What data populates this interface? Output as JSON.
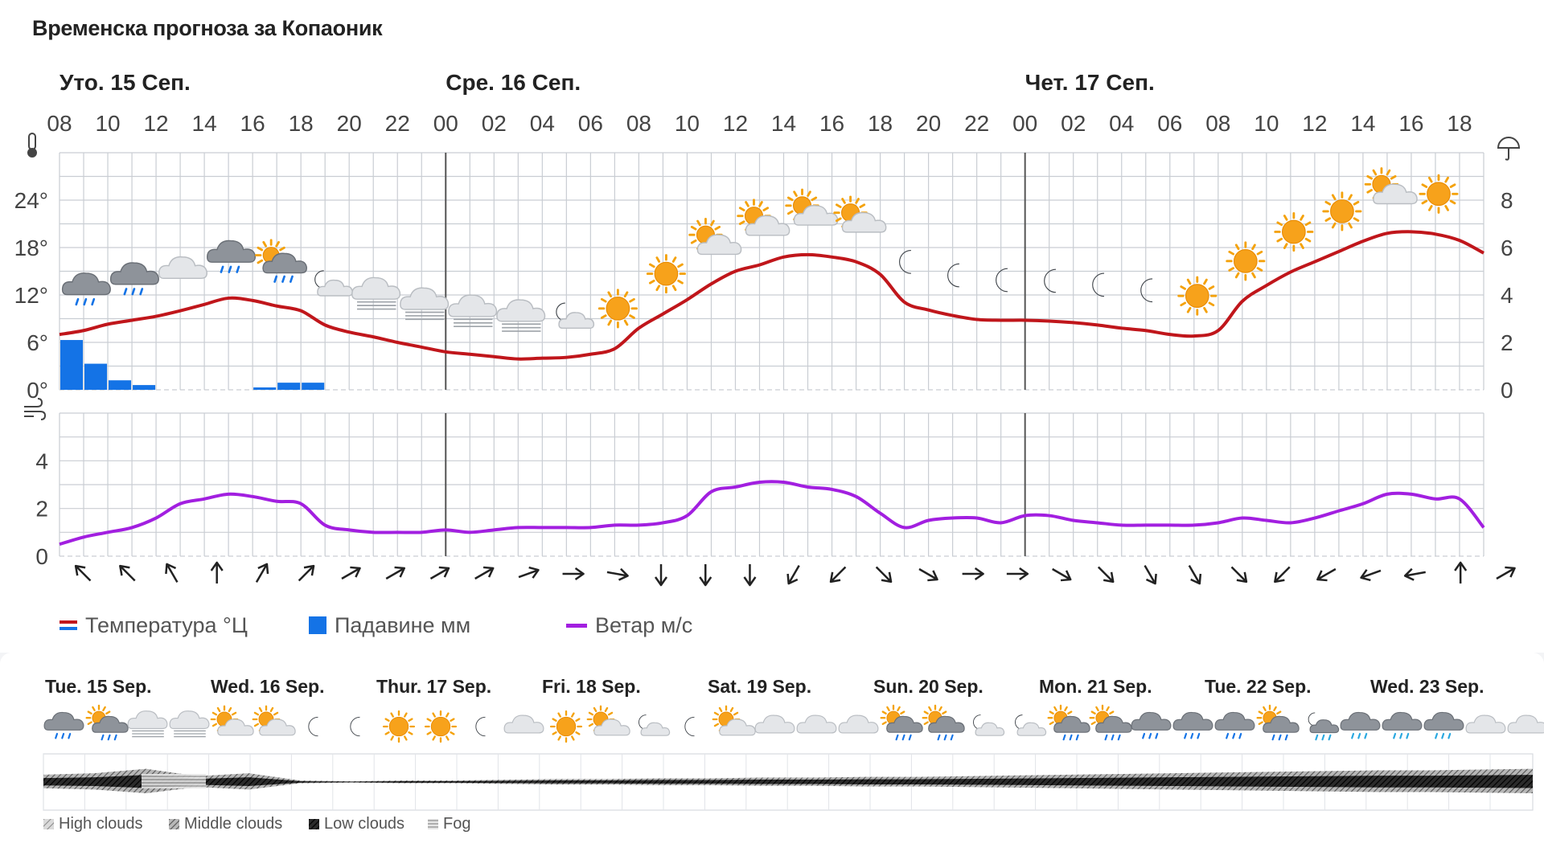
{
  "title": "Временска прогноза за Копаоник",
  "colors": {
    "temperature": "#c0161b",
    "precipitation": "#1473e6",
    "wind": "#a21fe0",
    "grid": "#c9cdd3",
    "day_separator": "#555555"
  },
  "legend": {
    "temperature": "Температура °Ц",
    "precipitation": "Падавине мм",
    "wind": "Ветар м/с"
  },
  "chart_data": [
    {
      "type": "line",
      "title": "",
      "day_labels": [
        {
          "label": "Уто. 15 Сеп.",
          "hour_index": 0
        },
        {
          "label": "Сре. 16 Сеп.",
          "hour_index": 16
        },
        {
          "label": "Чет. 17 Сеп.",
          "hour_index": 40
        }
      ],
      "x": [
        "08",
        "09",
        "10",
        "11",
        "12",
        "13",
        "14",
        "15",
        "16",
        "17",
        "18",
        "19",
        "20",
        "21",
        "22",
        "23",
        "00",
        "01",
        "02",
        "03",
        "04",
        "05",
        "06",
        "07",
        "08",
        "09",
        "10",
        "11",
        "12",
        "13",
        "14",
        "15",
        "16",
        "17",
        "18",
        "19",
        "20",
        "21",
        "22",
        "23",
        "00",
        "01",
        "02",
        "03",
        "04",
        "05",
        "06",
        "07",
        "08",
        "09",
        "10",
        "11",
        "12",
        "13",
        "14",
        "15",
        "16",
        "17",
        "18",
        "19"
      ],
      "x_tick_labels": [
        "08",
        "10",
        "12",
        "14",
        "16",
        "18",
        "20",
        "22",
        "00",
        "02",
        "04",
        "06",
        "08",
        "10",
        "12",
        "14",
        "16",
        "18",
        "20",
        "22",
        "00",
        "02",
        "04",
        "06",
        "08",
        "10",
        "12",
        "14",
        "16",
        "18"
      ],
      "ylim_left": [
        0,
        30
      ],
      "y_ticks_left": [
        "0°",
        "6°",
        "12°",
        "18°",
        "24°"
      ],
      "ylim_right": [
        0,
        10
      ],
      "y_ticks_right": [
        "0",
        "2",
        "4",
        "6",
        "8"
      ],
      "series": [
        {
          "name": "Температура °Ц",
          "axis": "left",
          "values": [
            7,
            7.5,
            8.3,
            8.8,
            9.3,
            10,
            10.8,
            11.6,
            11.3,
            10.6,
            10,
            8.2,
            7.3,
            6.7,
            6,
            5.4,
            4.8,
            4.5,
            4.2,
            3.9,
            4,
            4.1,
            4.5,
            5.2,
            7.8,
            9.6,
            11.4,
            13.4,
            15,
            15.8,
            16.8,
            17.1,
            16.8,
            16.2,
            14.6,
            11.1,
            10.1,
            9.4,
            8.9,
            8.8,
            8.8,
            8.7,
            8.5,
            8.2,
            7.8,
            7.5,
            7,
            6.8,
            7.5,
            11.2,
            13.2,
            14.9,
            16.2,
            17.5,
            18.8,
            19.8,
            20,
            19.7,
            18.9,
            17.3
          ]
        },
        {
          "name": "Падавине мм",
          "axis": "right",
          "kind": "bar",
          "values": [
            2.1,
            1.1,
            0.4,
            0.2,
            0,
            0,
            0,
            0,
            0.1,
            0.3,
            0.3,
            0,
            0,
            0,
            0,
            0,
            0,
            0,
            0,
            0,
            0,
            0,
            0,
            0,
            0,
            0,
            0,
            0,
            0,
            0,
            0,
            0,
            0,
            0,
            0,
            0,
            0,
            0,
            0,
            0,
            0,
            0,
            0,
            0,
            0,
            0,
            0,
            0,
            0,
            0,
            0,
            0,
            0,
            0,
            0,
            0,
            0,
            0,
            0,
            0
          ]
        }
      ],
      "weather_icons": [
        {
          "h": 1,
          "icon": "cloud-rain-icon"
        },
        {
          "h": 3,
          "icon": "cloud-rain-icon"
        },
        {
          "h": 5,
          "icon": "cloud-icon"
        },
        {
          "h": 7,
          "icon": "cloud-rain-icon"
        },
        {
          "h": 9,
          "icon": "sun-cloud-rain-icon"
        },
        {
          "h": 11,
          "icon": "moon-cloud-icon"
        },
        {
          "h": 13,
          "icon": "cloud-fog-icon"
        },
        {
          "h": 15,
          "icon": "cloud-fog-icon"
        },
        {
          "h": 17,
          "icon": "cloud-fog-icon"
        },
        {
          "h": 19,
          "icon": "cloud-fog-icon"
        },
        {
          "h": 21,
          "icon": "moon-cloud-icon"
        },
        {
          "h": 23,
          "icon": "sun-icon"
        },
        {
          "h": 25,
          "icon": "sun-icon"
        },
        {
          "h": 27,
          "icon": "sun-cloud-icon"
        },
        {
          "h": 29,
          "icon": "sun-cloud-icon"
        },
        {
          "h": 31,
          "icon": "sun-cloud-icon"
        },
        {
          "h": 33,
          "icon": "sun-cloud-icon"
        },
        {
          "h": 35,
          "icon": "moon-icon"
        },
        {
          "h": 37,
          "icon": "moon-icon"
        },
        {
          "h": 39,
          "icon": "moon-icon"
        },
        {
          "h": 41,
          "icon": "moon-icon"
        },
        {
          "h": 43,
          "icon": "moon-icon"
        },
        {
          "h": 45,
          "icon": "moon-icon"
        },
        {
          "h": 47,
          "icon": "sun-icon"
        },
        {
          "h": 49,
          "icon": "sun-icon"
        },
        {
          "h": 51,
          "icon": "sun-icon"
        },
        {
          "h": 53,
          "icon": "sun-icon"
        },
        {
          "h": 55,
          "icon": "sun-cloud-icon"
        },
        {
          "h": 57,
          "icon": "sun-icon"
        }
      ],
      "icon_temps": [
        12,
        14,
        15,
        16,
        16.5,
        13,
        10,
        8.5,
        7.5,
        7,
        6.8,
        8,
        12,
        15.5,
        18.5,
        20,
        21,
        21.5,
        21,
        17,
        14.5,
        13,
        12.5,
        12,
        12,
        14,
        18.5,
        22,
        23.5,
        24,
        24,
        24
      ]
    },
    {
      "type": "line",
      "title": "",
      "ylim": [
        0,
        6
      ],
      "y_ticks": [
        "0",
        "2",
        "4"
      ],
      "series": [
        {
          "name": "Ветар м/с",
          "values": [
            0.5,
            0.8,
            1,
            1.2,
            1.6,
            2.2,
            2.4,
            2.6,
            2.5,
            2.3,
            2.2,
            1.3,
            1.1,
            1,
            1,
            1,
            1.1,
            1,
            1.1,
            1.2,
            1.2,
            1.2,
            1.2,
            1.3,
            1.3,
            1.4,
            1.7,
            2.7,
            2.9,
            3.1,
            3.1,
            2.9,
            2.8,
            2.5,
            1.8,
            1.2,
            1.5,
            1.6,
            1.6,
            1.4,
            1.7,
            1.7,
            1.5,
            1.4,
            1.3,
            1.3,
            1.3,
            1.3,
            1.4,
            1.6,
            1.5,
            1.4,
            1.6,
            1.9,
            2.2,
            2.6,
            2.6,
            2.4,
            2.4,
            1.2
          ]
        }
      ],
      "wind_directions_deg": [
        135,
        135,
        150,
        180,
        210,
        225,
        240,
        240,
        240,
        240,
        250,
        270,
        280,
        0,
        0,
        0,
        30,
        45,
        315,
        300,
        270,
        270,
        300,
        315,
        330,
        330,
        315,
        45,
        60,
        70,
        80,
        180,
        240
      ]
    }
  ],
  "weekly": {
    "days": [
      "Tue. 15 Sep.",
      "Wed. 16 Sep.",
      "Thur. 17 Sep.",
      "Fri. 18 Sep.",
      "Sat. 19 Sep.",
      "Sun. 20 Sep.",
      "Mon. 21 Sep.",
      "Tue. 22 Sep.",
      "Wed. 23 Sep."
    ],
    "icons": [
      "cloud-rain-icon",
      "sun-cloud-rain-icon",
      "cloud-fog-icon",
      "cloud-fog-icon",
      "sun-cloud-icon",
      "sun-cloud-icon",
      "moon-icon",
      "moon-icon",
      "sun-icon",
      "sun-icon",
      "moon-icon",
      "cloud-icon",
      "sun-icon",
      "sun-cloud-icon",
      "moon-cloud-icon",
      "moon-icon",
      "sun-cloud-icon",
      "cloud-icon",
      "cloud-icon",
      "cloud-icon",
      "sun-cloud-rain-icon",
      "sun-cloud-rain-icon",
      "moon-cloud-icon",
      "moon-cloud-icon",
      "sun-cloud-rain-icon",
      "sun-cloud-rain-icon",
      "cloud-rain-icon",
      "cloud-rain-icon",
      "cloud-rain-icon",
      "sun-cloud-rain-icon",
      "moon-cloud-snow-icon",
      "cloud-snow-icon",
      "cloud-snow-icon",
      "cloud-snow-icon",
      "cloud-icon",
      "cloud-icon"
    ],
    "cloud_cover": [
      0.5,
      0.6,
      0.9,
      0.4,
      0.6,
      0.1,
      0.05,
      0.1,
      0.1,
      0.15,
      0.2,
      0.2,
      0.25,
      0.25,
      0.3,
      0.3,
      0.35,
      0.35,
      0.4,
      0.45,
      0.5,
      0.55,
      0.6,
      0.65,
      0.7,
      0.75,
      0.8,
      0.8,
      0.85,
      0.9
    ],
    "legend": {
      "high": "High clouds",
      "middle": "Middle clouds",
      "low": "Low clouds",
      "fog": "Fog"
    }
  }
}
